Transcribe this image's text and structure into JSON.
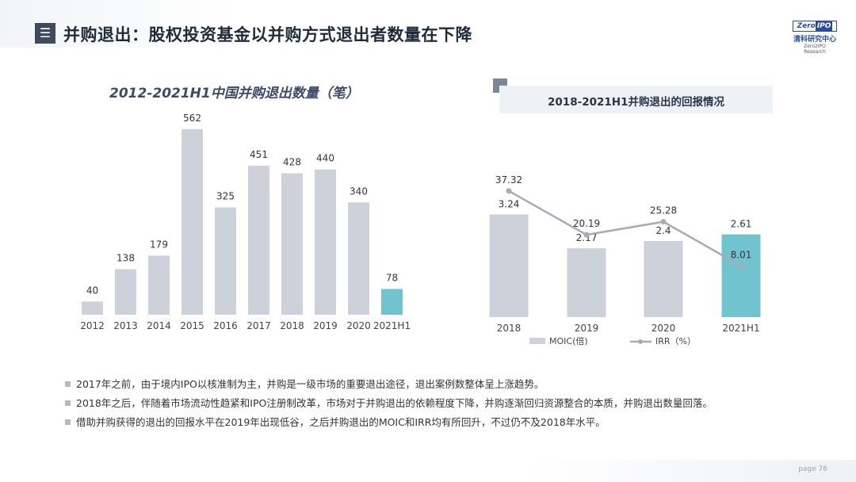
{
  "header": {
    "menu_icon": "menu-icon",
    "title": "并购退出：股权投资基金以并购方式退出者数量在下降"
  },
  "logo": {
    "text_left": "Zero",
    "text_right": "IPO",
    "name_cn": "清科研究中心",
    "name_en": "Zero2IPO Research"
  },
  "chart_data": [
    {
      "type": "bar",
      "title": "2012-2021H1中国并购退出数量（笔）",
      "categories": [
        "2012",
        "2013",
        "2014",
        "2015",
        "2016",
        "2017",
        "2018",
        "2019",
        "2020",
        "2021H1"
      ],
      "values": [
        40,
        138,
        179,
        562,
        325,
        451,
        428,
        440,
        340,
        78
      ],
      "ylim": [
        0,
        600
      ],
      "colors": {
        "default": "#cdd1da",
        "highlight": "#72c3d0"
      },
      "highlight_index": 9
    },
    {
      "type": "bar+line",
      "title": "2018-2021H1并购退出的回报情况",
      "categories": [
        "2018",
        "2019",
        "2020",
        "2021H1"
      ],
      "series": [
        {
          "name": "MOIC(倍)",
          "type": "bar",
          "values": [
            3.24,
            2.17,
            2.4,
            2.61
          ]
        },
        {
          "name": "IRR（%）",
          "type": "line",
          "values": [
            37.32,
            20.19,
            25.28,
            8.01
          ]
        }
      ],
      "bar_ylim": [
        0,
        5.0
      ],
      "line_ylim": [
        -12,
        50
      ],
      "legend_position": "bottom",
      "colors": {
        "bar": "#cdd1da",
        "bar_highlight": "#72c3d0",
        "line": "#a4acb8"
      },
      "highlight_index": 3
    }
  ],
  "bullets": [
    "2017年之前，由于境内IPO以核准制为主，并购是一级市场的重要退出途径，退出案例数整体呈上涨趋势。",
    "2018年之后，伴随着市场流动性趋紧和IPO注册制改革，市场对于并购退出的依赖程度下降，并购逐渐回归资源整合的本质，并购退出数量回落。",
    "借助并购获得的退出的回报水平在2019年出现低谷，之后并购退出的MOIC和IRR均有所回升，不过仍不及2018年水平。"
  ],
  "footer": {
    "page_label": "page",
    "page_number": "76"
  }
}
